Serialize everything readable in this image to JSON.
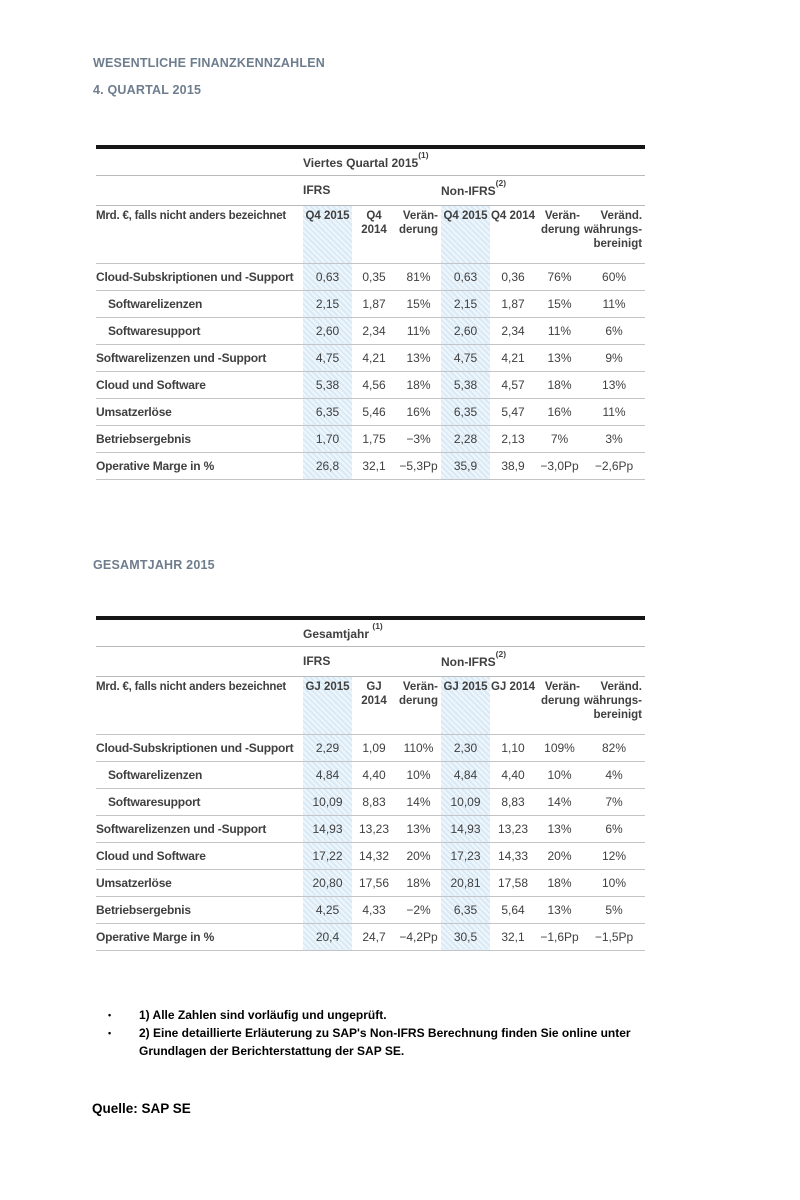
{
  "page": {
    "title1": "WESENTLICHE FINANZKENNZAHLEN",
    "title2": "4. QUARTAL 2015",
    "title3": "GESAMTJAHR 2015",
    "source": "Quelle: SAP SE"
  },
  "colors": {
    "heading_text": "#6e7d8d",
    "body_text": "#404040",
    "table_top_bar": "#161616",
    "row_divider": "#c2c5c7",
    "highlight_column": "#d9e9f6"
  },
  "tables": [
    {
      "period_label": "Viertes Quartal 2015",
      "period_sup": "(1)",
      "ifrs_label": "IFRS",
      "non_ifrs_label": "Non-IFRS",
      "non_ifrs_sup": "(2)",
      "unit_label": "Mrd. €, falls nicht anders bezeichnet",
      "columns": [
        "Q4 2015",
        "Q4 2014",
        "Verän-\nderung",
        "Q4 2015",
        "Q4 2014",
        "Verän-\nderung",
        "Veränd.\nwährungs-\nbereinigt"
      ],
      "rows": [
        {
          "label": "Cloud-Subskriptionen und -Support",
          "indent": false,
          "values": [
            "0,63",
            "0,35",
            "81%",
            "0,63",
            "0,36",
            "76%",
            "60%"
          ]
        },
        {
          "label": "Softwarelizenzen",
          "indent": true,
          "values": [
            "2,15",
            "1,87",
            "15%",
            "2,15",
            "1,87",
            "15%",
            "11%"
          ]
        },
        {
          "label": "Softwaresupport",
          "indent": true,
          "values": [
            "2,60",
            "2,34",
            "11%",
            "2,60",
            "2,34",
            "11%",
            "6%"
          ]
        },
        {
          "label": "Softwarelizenzen und -Support",
          "indent": false,
          "values": [
            "4,75",
            "4,21",
            "13%",
            "4,75",
            "4,21",
            "13%",
            "9%"
          ]
        },
        {
          "label": "Cloud und Software",
          "indent": false,
          "values": [
            "5,38",
            "4,56",
            "18%",
            "5,38",
            "4,57",
            "18%",
            "13%"
          ]
        },
        {
          "label": "Umsatzerlöse",
          "indent": false,
          "values": [
            "6,35",
            "5,46",
            "16%",
            "6,35",
            "5,47",
            "16%",
            "11%"
          ]
        },
        {
          "label": "Betriebsergebnis",
          "indent": false,
          "values": [
            "1,70",
            "1,75",
            "−3%",
            "2,28",
            "2,13",
            "7%",
            "3%"
          ]
        },
        {
          "label": "Operative Marge in %",
          "indent": false,
          "values": [
            "26,8",
            "32,1",
            "−5,3Pp",
            "35,9",
            "38,9",
            "−3,0Pp",
            "−2,6Pp"
          ]
        }
      ]
    },
    {
      "period_label": "Gesamtjahr ",
      "period_sup": "(1)",
      "ifrs_label": "IFRS",
      "non_ifrs_label": "Non-IFRS",
      "non_ifrs_sup": "(2)",
      "unit_label": "Mrd. €, falls nicht anders bezeichnet",
      "columns": [
        "GJ 2015",
        "GJ 2014",
        "Verän-\nderung",
        "GJ 2015",
        "GJ 2014",
        "Verän-\nderung",
        "Veränd.\nwährungs-\nbereinigt"
      ],
      "rows": [
        {
          "label": "Cloud-Subskriptionen und -Support",
          "indent": false,
          "values": [
            "2,29",
            "1,09",
            "110%",
            "2,30",
            "1,10",
            "109%",
            "82%"
          ]
        },
        {
          "label": "Softwarelizenzen",
          "indent": true,
          "values": [
            "4,84",
            "4,40",
            "10%",
            "4,84",
            "4,40",
            "10%",
            "4%"
          ]
        },
        {
          "label": "Softwaresupport",
          "indent": true,
          "values": [
            "10,09",
            "8,83",
            "14%",
            "10,09",
            "8,83",
            "14%",
            "7%"
          ]
        },
        {
          "label": "Softwarelizenzen und -Support",
          "indent": false,
          "values": [
            "14,93",
            "13,23",
            "13%",
            "14,93",
            "13,23",
            "13%",
            "6%"
          ]
        },
        {
          "label": "Cloud und Software",
          "indent": false,
          "values": [
            "17,22",
            "14,32",
            "20%",
            "17,23",
            "14,33",
            "20%",
            "12%"
          ]
        },
        {
          "label": "Umsatzerlöse",
          "indent": false,
          "values": [
            "20,80",
            "17,56",
            "18%",
            "20,81",
            "17,58",
            "18%",
            "10%"
          ]
        },
        {
          "label": "Betriebsergebnis",
          "indent": false,
          "values": [
            "4,25",
            "4,33",
            "−2%",
            "6,35",
            "5,64",
            "13%",
            "5%"
          ]
        },
        {
          "label": "Operative Marge in %",
          "indent": false,
          "values": [
            "20,4",
            "24,7",
            "−4,2Pp",
            "30,5",
            "32,1",
            "−1,6Pp",
            "−1,5Pp"
          ]
        }
      ]
    }
  ],
  "footnotes": [
    {
      "bullet": "•",
      "text": "1) Alle Zahlen sind vorläufig und ungeprüft."
    },
    {
      "bullet": "•",
      "text": "2) Eine detaillierte Erläuterung zu SAP's Non-IFRS Berechnung finden Sie online unter\nGrundlagen der Berichterstattung der SAP SE."
    }
  ]
}
